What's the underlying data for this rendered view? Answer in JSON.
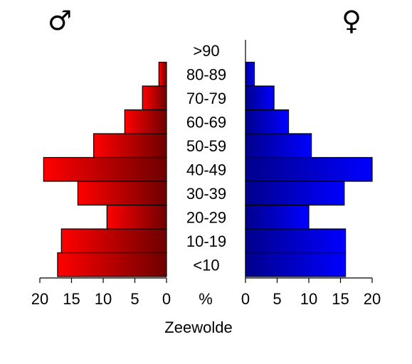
{
  "chart_data": {
    "type": "bar",
    "orientation": "horizontal",
    "title": "",
    "xlabel": "Zeewolde",
    "unit_label": "%",
    "categories": [
      "<10",
      "10-19",
      "20-29",
      "30-39",
      "40-49",
      "50-59",
      "60-69",
      "70-79",
      "80-89",
      ">90"
    ],
    "series": [
      {
        "name": "♂",
        "values": [
          17.2,
          16.6,
          9.4,
          14.0,
          19.4,
          11.5,
          6.6,
          3.8,
          1.2,
          0.0
        ]
      },
      {
        "name": "♀",
        "values": [
          15.8,
          15.8,
          10.0,
          15.6,
          20.0,
          10.4,
          6.8,
          4.5,
          1.4,
          0.0
        ]
      }
    ],
    "xlim": [
      0,
      20
    ],
    "male_ticks": [
      "20",
      "15",
      "10",
      "5",
      "0"
    ],
    "female_ticks": [
      "0",
      "5",
      "10",
      "15",
      "20"
    ],
    "tick_values": [
      20,
      15,
      10,
      5,
      0
    ],
    "female_tick_values": [
      0,
      5,
      10,
      15,
      20
    ],
    "grid": false,
    "colors": {
      "male_light": "#ff0000",
      "male_dark": "#6e0000",
      "female_dark": "#00008c",
      "female_light": "#0000ff"
    }
  }
}
